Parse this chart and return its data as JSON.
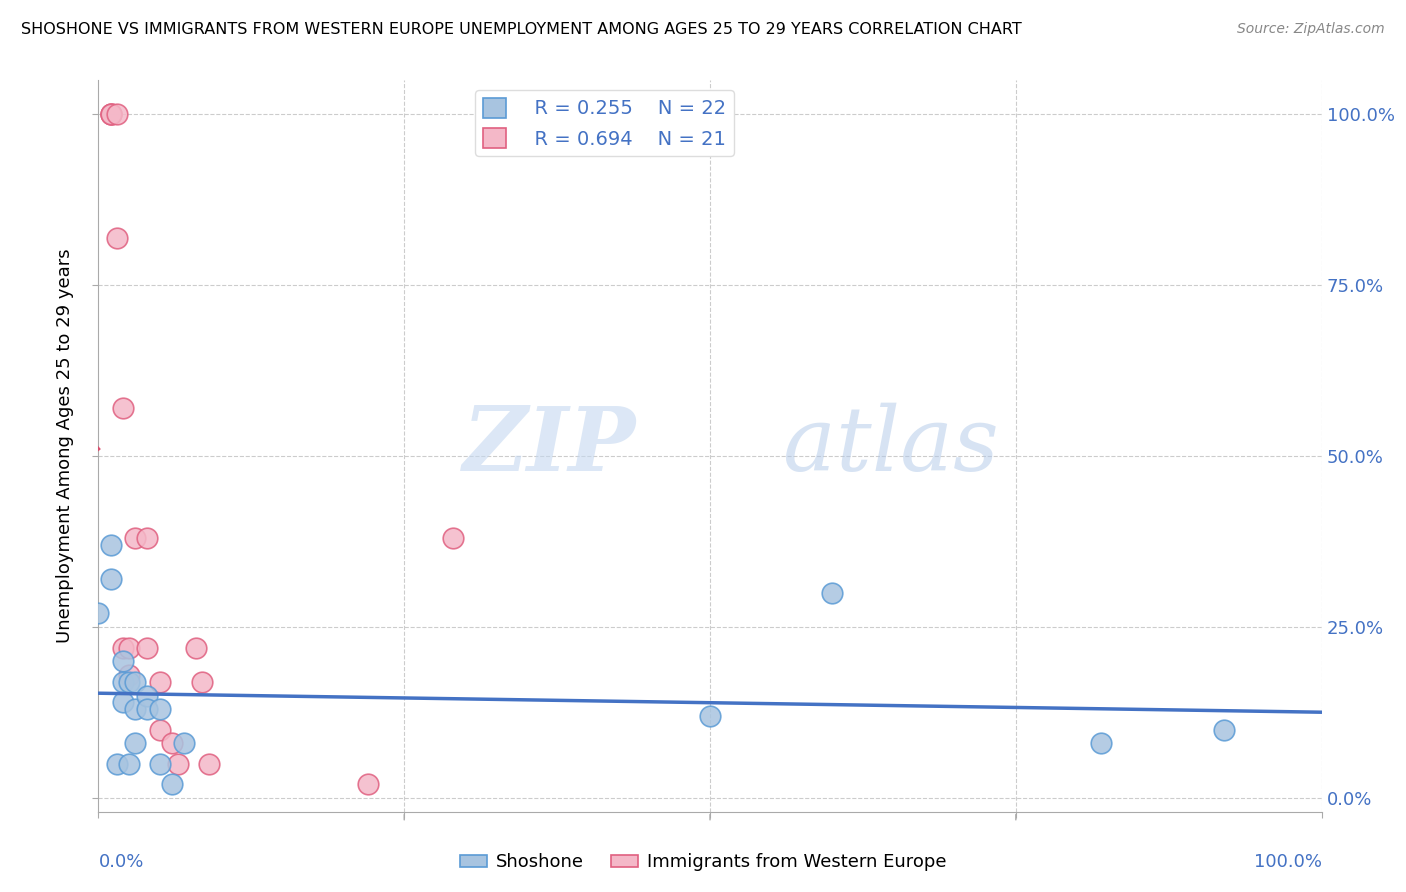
{
  "title": "SHOSHONE VS IMMIGRANTS FROM WESTERN EUROPE UNEMPLOYMENT AMONG AGES 25 TO 29 YEARS CORRELATION CHART",
  "source": "Source: ZipAtlas.com",
  "ylabel": "Unemployment Among Ages 25 to 29 years",
  "ytick_values": [
    0,
    0.25,
    0.5,
    0.75,
    1.0
  ],
  "watermark_zip": "ZIP",
  "watermark_atlas": "atlas",
  "shoshone_color": "#a8c4e0",
  "shoshone_edge_color": "#5b9bd5",
  "immigrants_color": "#f4b8c8",
  "immigrants_edge_color": "#e06080",
  "trendline_shoshone_color": "#4472c4",
  "trendline_immigrants_color": "#d94f6e",
  "legend_R_shoshone": "R = 0.255",
  "legend_N_shoshone": "N = 22",
  "legend_R_immigrants": "R = 0.694",
  "legend_N_immigrants": "N = 21",
  "shoshone_x": [
    0.0,
    0.01,
    0.01,
    0.015,
    0.02,
    0.02,
    0.02,
    0.025,
    0.025,
    0.03,
    0.03,
    0.03,
    0.04,
    0.04,
    0.05,
    0.05,
    0.06,
    0.07,
    0.5,
    0.6,
    0.82,
    0.92
  ],
  "shoshone_y": [
    0.27,
    0.37,
    0.32,
    0.05,
    0.2,
    0.17,
    0.14,
    0.17,
    0.05,
    0.17,
    0.13,
    0.08,
    0.15,
    0.13,
    0.13,
    0.05,
    0.02,
    0.08,
    0.12,
    0.3,
    0.08,
    0.1
  ],
  "immigrants_x": [
    0.01,
    0.01,
    0.01,
    0.015,
    0.015,
    0.02,
    0.02,
    0.025,
    0.025,
    0.03,
    0.04,
    0.04,
    0.05,
    0.05,
    0.06,
    0.065,
    0.08,
    0.085,
    0.09,
    0.22,
    0.29
  ],
  "immigrants_y": [
    1.0,
    1.0,
    1.0,
    1.0,
    0.82,
    0.57,
    0.22,
    0.22,
    0.18,
    0.38,
    0.38,
    0.22,
    0.17,
    0.1,
    0.08,
    0.05,
    0.22,
    0.17,
    0.05,
    0.02,
    0.38
  ],
  "xlim": [
    0.0,
    1.0
  ],
  "ylim": [
    -0.02,
    1.05
  ],
  "background_color": "#ffffff",
  "grid_color": "#cccccc",
  "x_tick_positions": [
    0.0,
    0.25,
    0.5,
    0.75,
    1.0
  ]
}
